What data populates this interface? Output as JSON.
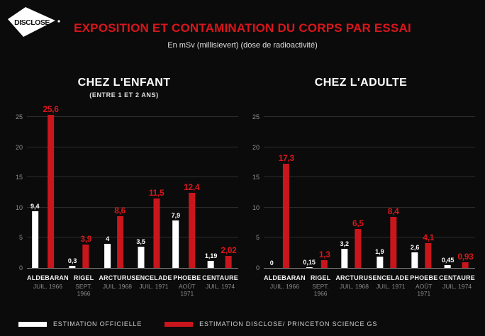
{
  "logo": {
    "text": "DISCLOSE"
  },
  "header": {
    "title": "EXPOSITION ET CONTAMINATION DU CORPS PAR ESSAI",
    "subtitle": "En mSv (millisievert) (dose de radioactivité)"
  },
  "colors": {
    "background": "#0b0b0b",
    "red": "#c9161c",
    "red_bright": "#d8161c",
    "white": "#ffffff",
    "gridline": "#2d2d2d",
    "axis_line": "#777777"
  },
  "chart_data": [
    {
      "type": "bar",
      "title": "CHEZ L'ENFANT",
      "subtitle": "(ENTRE 1 ET 2 ANS)",
      "unit": "mSv",
      "grid": true,
      "yticks": [
        0,
        5,
        10,
        15,
        20,
        25
      ],
      "ylim": [
        0,
        27
      ],
      "categories": [
        {
          "name": "ALDEBARAN",
          "date": "JUIL. 1966"
        },
        {
          "name": "RIGEL",
          "date": "SEPT. 1966"
        },
        {
          "name": "ARCTURUS",
          "date": "JUIL. 1968"
        },
        {
          "name": "ENCELADE",
          "date": "JUIL. 1971"
        },
        {
          "name": "PHOEBE",
          "date": "AOÛT 1971"
        },
        {
          "name": "CENTAURE",
          "date": "JUIL. 1974"
        }
      ],
      "series": [
        {
          "name": "ESTIMATION OFFICIELLE",
          "key": "official",
          "values": [
            9.4,
            0.3,
            4,
            3.5,
            7.9,
            1.19
          ],
          "labels": [
            "9,4",
            "0,3",
            "4",
            "3,5",
            "7,9",
            "1,19"
          ]
        },
        {
          "name": "ESTIMATION DISCLOSE/ PRINCETON SCIENCE GS",
          "key": "disclose",
          "values": [
            25.6,
            3.9,
            8.6,
            11.5,
            12.4,
            2.02
          ],
          "labels": [
            "25,6",
            "3,9",
            "8,6",
            "11,5",
            "12,4",
            "2,02"
          ]
        }
      ]
    },
    {
      "type": "bar",
      "title": "CHEZ L'ADULTE",
      "subtitle": "",
      "unit": "mSv",
      "grid": true,
      "yticks": [
        0,
        5,
        10,
        15,
        20,
        25
      ],
      "ylim": [
        0,
        27
      ],
      "categories": [
        {
          "name": "ALDEBARAN",
          "date": "JUIL. 1966"
        },
        {
          "name": "RIGEL",
          "date": "SEPT. 1966"
        },
        {
          "name": "ARCTURUS",
          "date": "JUIL. 1968"
        },
        {
          "name": "ENCELADE",
          "date": "JUIL. 1971"
        },
        {
          "name": "PHOEBE",
          "date": "AOÛT 1971"
        },
        {
          "name": "CENTAURE",
          "date": "JUIL. 1974"
        }
      ],
      "series": [
        {
          "name": "ESTIMATION OFFICIELLE",
          "key": "official",
          "values": [
            0,
            0.15,
            3.2,
            1.9,
            2.6,
            0.45
          ],
          "labels": [
            "0",
            "0,15",
            "3,2",
            "1,9",
            "2,6",
            "0,45"
          ]
        },
        {
          "name": "ESTIMATION DISCLOSE/ PRINCETON SCIENCE GS",
          "key": "disclose",
          "values": [
            17.3,
            1.3,
            6.5,
            8.4,
            4.1,
            0.93
          ],
          "labels": [
            "17,3",
            "1,3",
            "6,5",
            "8,4",
            "4,1",
            "0,93"
          ]
        }
      ]
    }
  ],
  "legend": {
    "position": "bottom-left",
    "items": [
      {
        "label": "ESTIMATION OFFICIELLE",
        "key": "official"
      },
      {
        "label": "ESTIMATION DISCLOSE/ PRINCETON SCIENCE GS",
        "key": "disclose"
      }
    ]
  }
}
